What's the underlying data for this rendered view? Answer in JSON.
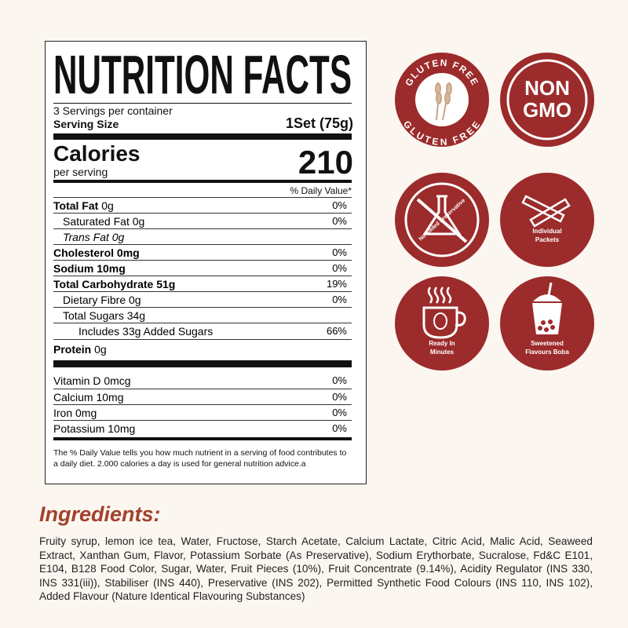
{
  "label": {
    "title": "NUTRITION FACTS",
    "servings": "3 Servings per container",
    "serving_size_label": "Serving Size",
    "serving_size": "1Set (75g)",
    "calories_label": "Calories",
    "per_serving": "per serving",
    "calories": "210",
    "dv_header": "% Daily Value*",
    "rows": [
      {
        "name": "Total Fat",
        "amount": "0g",
        "dv": "0%"
      },
      {
        "name": "Saturated Fat 0g",
        "dv": "0%"
      },
      {
        "name": "Trans Fat 0g"
      },
      {
        "name": "Cholesterol 0mg",
        "dv": "0%"
      },
      {
        "name": "Sodium 10mg",
        "dv": "0%"
      },
      {
        "name": "Total Carbohydrate 51g",
        "dv": "19%"
      },
      {
        "name": "Dietary Fibre 0g",
        "dv": "0%"
      },
      {
        "name": "Total Sugars 34g"
      },
      {
        "name": "Includes 33g Added Sugars",
        "dv": "66%"
      },
      {
        "name": "Protein",
        "amount": "0g"
      }
    ],
    "vitamins": [
      {
        "name": "Vitamin D 0mcg",
        "dv": "0%"
      },
      {
        "name": "Calcium 10mg",
        "dv": "0%"
      },
      {
        "name": "Iron 0mg",
        "dv": "0%"
      },
      {
        "name": "Potassium 10mg",
        "dv": "0%"
      }
    ],
    "footnote": "The % Daily Value tells you how much nutrient in a serving of food contributes to a daily diet. 2.000 calories a day is used for general nutrition advice.a"
  },
  "badges": [
    {
      "top": "GLUTEN FREE",
      "bottom": "GLUTEN FREE"
    },
    {
      "line1": "NON",
      "line2": "GMO"
    },
    {
      "text": "No Added Preservative"
    },
    {
      "line1": "Individual",
      "line2": "Packets"
    },
    {
      "line1": "Ready In",
      "line2": "Minutes"
    },
    {
      "line1": "Sweetened",
      "line2": "Flavours Boba"
    }
  ],
  "ingredients": {
    "title": "Ingredients:",
    "text": "Fruity syrup, lemon ice tea, Water, Fructose, Starch Acetate, Calcium Lactate, Citric Acid, Malic Acid, Seaweed Extract, Xanthan Gum, Flavor, Potassium Sorbate (As Preservative), Sodium Erythorbate, Sucralose, Fd&C E101, E104, B128 Food Color, Sugar, Water, Fruit Pieces (10%), Fruit Concentrate (9.14%), Acidity Regulator (INS 330, INS 331(iii)), Stabiliser (INS 440), Preservative (INS 202), Permitted Synthetic Food Colours (INS 110, INS 102), Added Flavour (Nature Identical Flavouring Substances)"
  }
}
